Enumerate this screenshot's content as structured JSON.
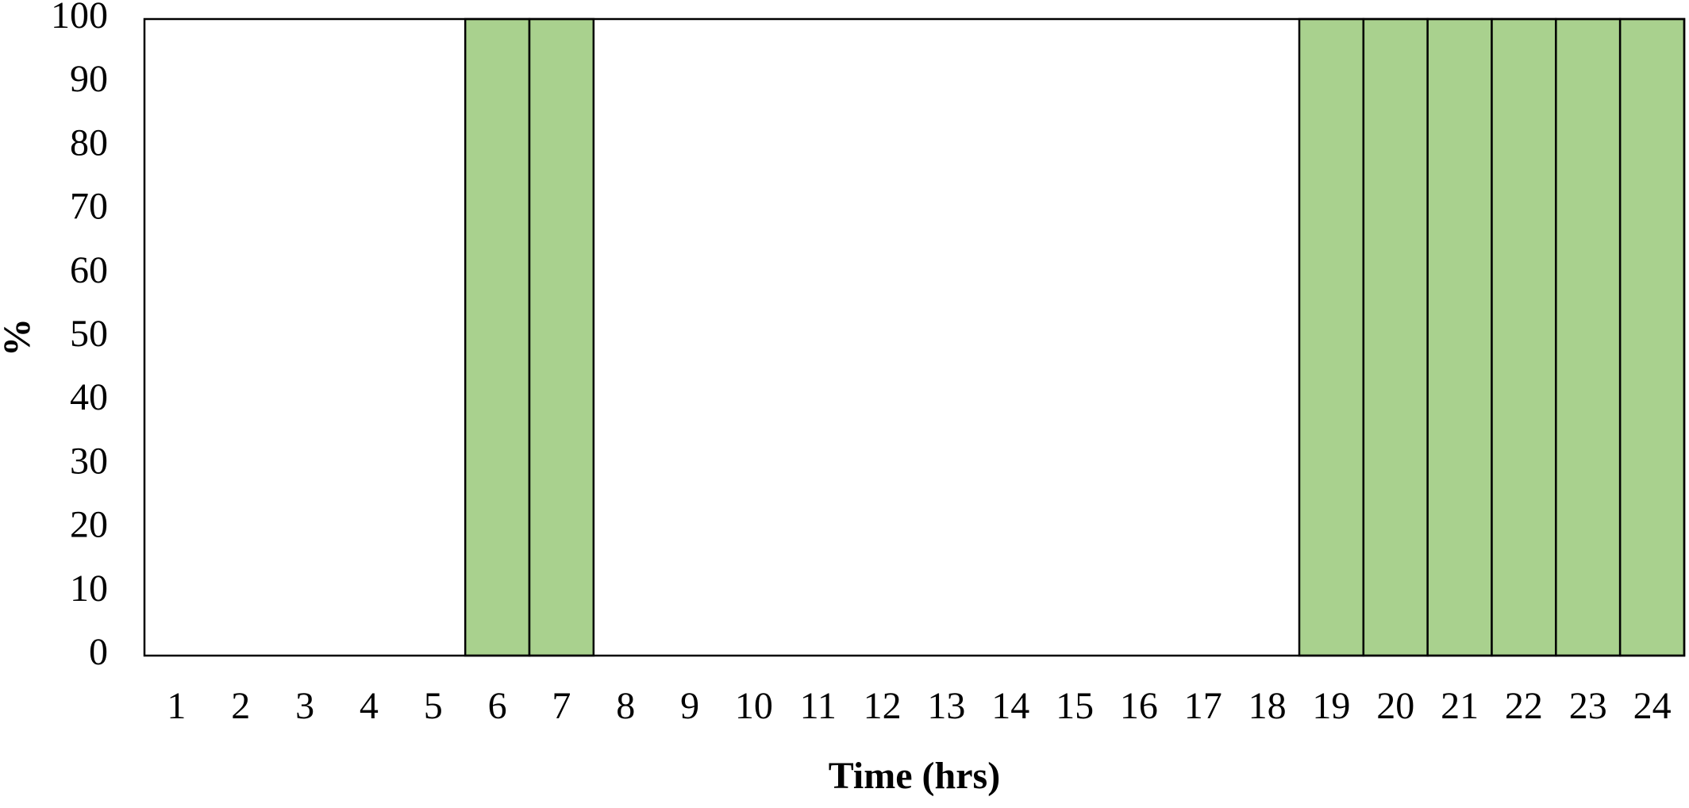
{
  "chart_data": {
    "type": "bar",
    "x_label": "Time (hrs)",
    "y_label": "%",
    "categories": [
      "1",
      "2",
      "3",
      "4",
      "5",
      "6",
      "7",
      "8",
      "9",
      "10",
      "11",
      "12",
      "13",
      "14",
      "15",
      "16",
      "17",
      "18",
      "19",
      "20",
      "21",
      "22",
      "23",
      "24"
    ],
    "values": [
      0,
      0,
      0,
      0,
      0,
      100,
      100,
      0,
      0,
      0,
      0,
      0,
      0,
      0,
      0,
      0,
      0,
      0,
      100,
      100,
      100,
      100,
      100,
      100
    ],
    "color": "#a9d18e",
    "ylim": [
      0,
      100
    ],
    "yticks": [
      0,
      10,
      20,
      30,
      40,
      50,
      60,
      70,
      80,
      90,
      100
    ],
    "grid": false
  }
}
